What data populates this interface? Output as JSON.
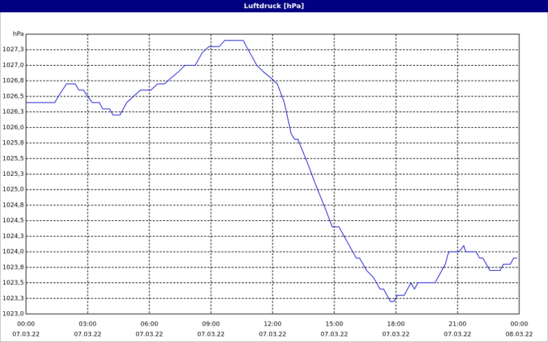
{
  "chart_data": {
    "type": "line",
    "title": "Luftdruck [hPa]",
    "x": [
      0,
      1.4,
      1.57,
      1.97,
      2.4,
      2.57,
      2.8,
      3,
      3.23,
      3.57,
      3.73,
      4.07,
      4.23,
      4.57,
      4.9,
      5.23,
      5.57,
      6.07,
      6.4,
      6.73,
      7.07,
      7.4,
      7.73,
      8.23,
      8.57,
      8.9,
      9.4,
      9.67,
      10.57,
      10.73,
      11.23,
      11.57,
      11.9,
      12.23,
      12.57,
      12.9,
      13.07,
      13.23,
      13.73,
      14.07,
      14.57,
      14.9,
      15.23,
      15.73,
      16.07,
      16.23,
      16.57,
      16.9,
      17.23,
      17.4,
      17.73,
      17.9,
      18.07,
      18.4,
      18.73,
      18.9,
      19.07,
      19.9,
      20.4,
      20.57,
      21.07,
      21.3,
      21.4,
      21.9,
      22.07,
      22.23,
      22.57,
      23.07,
      23.23,
      23.57,
      23.73,
      23.9
    ],
    "series": [
      {
        "name": "Luftdruck",
        "color": "#0000c8",
        "values": [
          1026.4,
          1026.4,
          1026.5,
          1026.7,
          1026.7,
          1026.6,
          1026.6,
          1026.5,
          1026.4,
          1026.4,
          1026.3,
          1026.3,
          1026.2,
          1026.2,
          1026.4,
          1026.5,
          1026.6,
          1026.6,
          1026.7,
          1026.7,
          1026.8,
          1026.89,
          1027.0,
          1027.0,
          1027.2,
          1027.3,
          1027.3,
          1027.4,
          1027.4,
          1027.3,
          1027.0,
          1026.89,
          1026.8,
          1026.7,
          1026.4,
          1025.9,
          1025.81,
          1025.81,
          1025.4,
          1025.1,
          1024.69,
          1024.4,
          1024.4,
          1024.1,
          1023.9,
          1023.9,
          1023.7,
          1023.59,
          1023.4,
          1023.4,
          1023.2,
          1023.2,
          1023.3,
          1023.3,
          1023.5,
          1023.4,
          1023.5,
          1023.5,
          1023.8,
          1024.0,
          1024.0,
          1024.1,
          1024.0,
          1024.0,
          1023.9,
          1023.9,
          1023.7,
          1023.7,
          1023.8,
          1023.8,
          1023.9,
          1023.9
        ]
      }
    ],
    "xlim": [
      0,
      24
    ],
    "xticks": [
      {
        "value": 0,
        "label": "00:00"
      },
      {
        "value": 3,
        "label": "03:00"
      },
      {
        "value": 6,
        "label": "06:00"
      },
      {
        "value": 9,
        "label": "09:00"
      },
      {
        "value": 12,
        "label": "12:00"
      },
      {
        "value": 15,
        "label": "15:00"
      },
      {
        "value": 18,
        "label": "18:00"
      },
      {
        "value": 21,
        "label": "21:00"
      },
      {
        "value": 24,
        "label": "00:00"
      }
    ],
    "xtick_dates": [
      "07.03.22",
      "07.03.22",
      "07.03.22",
      "07.03.22",
      "07.03.22",
      "07.03.22",
      "07.03.22",
      "07.03.22",
      "08.03.22"
    ],
    "ylim": [
      1023,
      1027.5
    ],
    "yticks": [
      {
        "value": 1023,
        "label": "1023,0"
      },
      {
        "value": 1023.25,
        "label": "1023,3"
      },
      {
        "value": 1023.5,
        "label": "1023,5"
      },
      {
        "value": 1023.75,
        "label": "1023,8"
      },
      {
        "value": 1024,
        "label": "1024,0"
      },
      {
        "value": 1024.25,
        "label": "1024,3"
      },
      {
        "value": 1024.5,
        "label": "1024,5"
      },
      {
        "value": 1024.75,
        "label": "1024,8"
      },
      {
        "value": 1025,
        "label": "1025,0"
      },
      {
        "value": 1025.25,
        "label": "1025,3"
      },
      {
        "value": 1025.5,
        "label": "1025,5"
      },
      {
        "value": 1025.75,
        "label": "1025,8"
      },
      {
        "value": 1026,
        "label": "1026,0"
      },
      {
        "value": 1026.25,
        "label": "1026,3"
      },
      {
        "value": 1026.5,
        "label": "1026,5"
      },
      {
        "value": 1026.75,
        "label": "1026,8"
      },
      {
        "value": 1027,
        "label": "1027,0"
      },
      {
        "value": 1027.25,
        "label": "1027,3"
      },
      {
        "value": 1027.5,
        "label": "hPa"
      }
    ],
    "grid": true
  }
}
